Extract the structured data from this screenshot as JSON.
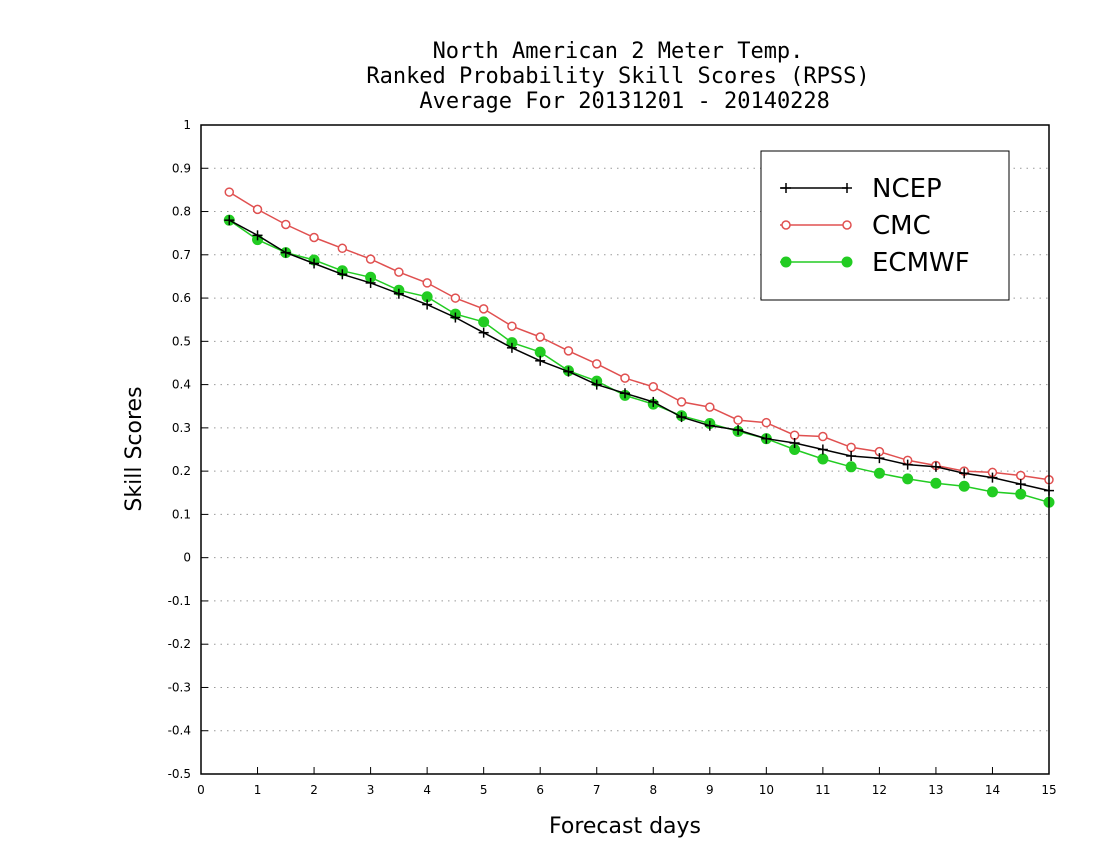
{
  "chart_data": {
    "type": "line",
    "title": "North American 2 Meter Temp.",
    "subtitle": "Ranked Probability Skill Scores (RPSS)",
    "subtitle2": " Average For 20131201 - 20140228",
    "xlabel": "Forecast days",
    "ylabel": "Skill Scores",
    "xlim": [
      0,
      15
    ],
    "ylim": [
      -0.5,
      1
    ],
    "xticks": [
      "0",
      "1",
      "2",
      "3",
      "4",
      "5",
      "6",
      "7",
      "8",
      "9",
      "10",
      "11",
      "12",
      "13",
      "14",
      "15"
    ],
    "yticks": [
      "1",
      "0.9",
      "0.8",
      "0.7",
      "0.6",
      "0.5",
      "0.4",
      "0.3",
      "0.2",
      "0.1",
      "0",
      "-0.1",
      "-0.2",
      "-0.3",
      "-0.4",
      "-0.5"
    ],
    "grid": true,
    "legend_position": "top-right",
    "x": [
      0.5,
      1,
      1.5,
      2,
      2.5,
      3,
      3.5,
      4,
      4.5,
      5,
      5.5,
      6,
      6.5,
      7,
      7.5,
      8,
      8.5,
      9,
      9.5,
      10,
      10.5,
      11,
      11.5,
      12,
      12.5,
      13,
      13.5,
      14,
      14.5,
      15
    ],
    "series": [
      {
        "name": "NCEP",
        "color": "#000000",
        "marker": "plus",
        "values": [
          0.78,
          0.745,
          0.705,
          0.68,
          0.655,
          0.635,
          0.61,
          0.585,
          0.555,
          0.52,
          0.485,
          0.455,
          0.43,
          0.4,
          0.38,
          0.36,
          0.325,
          0.305,
          0.295,
          0.275,
          0.265,
          0.25,
          0.235,
          0.23,
          0.215,
          0.21,
          0.195,
          0.185,
          0.17,
          0.155
        ]
      },
      {
        "name": "CMC",
        "color": "#e05050",
        "marker": "open-circle",
        "values": [
          0.845,
          0.805,
          0.77,
          0.74,
          0.715,
          0.69,
          0.66,
          0.635,
          0.6,
          0.575,
          0.535,
          0.51,
          0.478,
          0.448,
          0.415,
          0.395,
          0.36,
          0.348,
          0.318,
          0.312,
          0.283,
          0.28,
          0.255,
          0.245,
          0.225,
          0.213,
          0.2,
          0.197,
          0.19,
          0.18
        ]
      },
      {
        "name": "ECMWF",
        "color": "#22cc22",
        "marker": "filled-circle",
        "values": [
          0.78,
          0.735,
          0.705,
          0.688,
          0.663,
          0.648,
          0.618,
          0.603,
          0.563,
          0.545,
          0.497,
          0.475,
          0.432,
          0.408,
          0.375,
          0.355,
          0.328,
          0.31,
          0.292,
          0.275,
          0.25,
          0.228,
          0.21,
          0.195,
          0.182,
          0.172,
          0.165,
          0.152,
          0.147,
          0.128
        ]
      }
    ]
  }
}
